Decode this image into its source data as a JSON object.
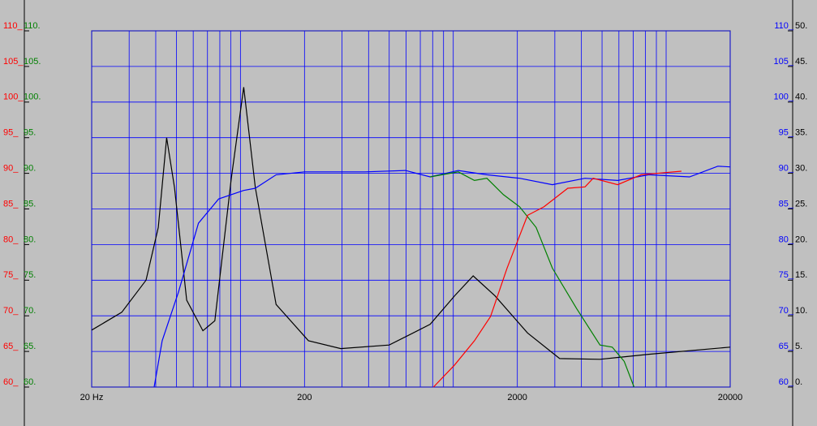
{
  "chart_data": {
    "type": "line",
    "log_x": true,
    "grid": true,
    "grid_color": "#0000ff",
    "xlim": [
      20,
      20000
    ],
    "xticks": [
      {
        "value": 20,
        "label": "20 Hz"
      },
      200,
      2000,
      20000
    ],
    "xminor": [
      30,
      40,
      50,
      60,
      70,
      80,
      90,
      100,
      300,
      400,
      500,
      600,
      700,
      800,
      900,
      1000,
      3000,
      4000,
      5000,
      6000,
      7000,
      8000,
      9000,
      10000
    ],
    "ylim": [
      60,
      110
    ],
    "yticks": [
      {
        "value": 60,
        "label": "60_"
      },
      {
        "value": 65,
        "label": "65_"
      },
      {
        "value": 70,
        "label": "70_"
      },
      {
        "value": 75,
        "label": "75_"
      },
      {
        "value": 80,
        "label": "80_"
      },
      {
        "value": 85,
        "label": "85_"
      },
      {
        "value": 90,
        "label": "90_"
      },
      {
        "value": 95,
        "label": "95_"
      },
      {
        "value": 100,
        "label": "100_"
      },
      {
        "value": 105,
        "label": "105_"
      },
      {
        "value": 110,
        "label": "110_"
      }
    ],
    "yticks_color": "#ff0000",
    "yticks_b": [
      {
        "value": 60,
        "label": "60."
      },
      {
        "value": 65,
        "label": "65."
      },
      {
        "value": 70,
        "label": "70."
      },
      {
        "value": 75,
        "label": "75."
      },
      {
        "value": 80,
        "label": "80."
      },
      {
        "value": 85,
        "label": "85."
      },
      {
        "value": 90,
        "label": "90."
      },
      {
        "value": 95,
        "label": "95."
      },
      {
        "value": 100,
        "label": "100."
      },
      {
        "value": 105,
        "label": "105."
      },
      {
        "value": 110,
        "label": "110."
      }
    ],
    "yticks_b_color": "#008000",
    "y2lim": [
      60,
      110
    ],
    "y2ticks": [
      {
        "value": 60,
        "label": "60_"
      },
      {
        "value": 65,
        "label": "65_"
      },
      {
        "value": 70,
        "label": "70_"
      },
      {
        "value": 75,
        "label": "75_"
      },
      {
        "value": 80,
        "label": "80_"
      },
      {
        "value": 85,
        "label": "85_"
      },
      {
        "value": 90,
        "label": "90_"
      },
      {
        "value": 95,
        "label": "95_"
      },
      {
        "value": 100,
        "label": "100_"
      },
      {
        "value": 105,
        "label": "105_"
      },
      {
        "value": 110,
        "label": "110_"
      }
    ],
    "y2ticks_color": "#0000ff",
    "y3lim": [
      0,
      50
    ],
    "y3ticks": [
      {
        "value": 0,
        "label": "0."
      },
      {
        "value": 5,
        "label": "5."
      },
      {
        "value": 10,
        "label": "10."
      },
      {
        "value": 15,
        "label": "15."
      },
      {
        "value": 20,
        "label": "20."
      },
      {
        "value": 25,
        "label": "25."
      },
      {
        "value": 30,
        "label": "30."
      },
      {
        "value": 35,
        "label": "35."
      },
      {
        "value": 40,
        "label": "40."
      },
      {
        "value": 45,
        "label": "45."
      },
      {
        "value": 50,
        "label": "50."
      }
    ],
    "y3ticks_color": "#000000",
    "series": [
      {
        "color": "#000000",
        "axis": "y3",
        "x": [
          20,
          27.7,
          36,
          41.1,
          45,
          49,
          55.9,
          66.6,
          75.8,
          90.6,
          103.6,
          117.5,
          147,
          208.8,
          296,
          500,
          779,
          1014,
          1240,
          1570,
          2233,
          3160,
          4890,
          8290,
          20000
        ],
        "values": [
          8,
          10.5,
          15,
          22.4,
          35,
          28,
          12.2,
          7.9,
          9.3,
          29.3,
          42.1,
          28,
          11.6,
          6.5,
          5.4,
          5.9,
          8.8,
          12.8,
          15.6,
          12.8,
          7.6,
          4,
          3.9,
          4.6,
          5.6
        ]
      },
      {
        "color": "#0000ff",
        "axis": "y",
        "x": [
          39.3,
          42.9,
          51.1,
          63.5,
          79,
          103.6,
          117.5,
          147,
          200,
          384,
          597,
          779,
          1055,
          1438,
          2051,
          2920,
          4160,
          5921,
          8290,
          12880,
          17500,
          20000
        ],
        "values": [
          60,
          66.5,
          73.3,
          83,
          86.4,
          87.6,
          87.9,
          89.8,
          90.2,
          90.2,
          90.4,
          89.5,
          90.4,
          89.8,
          89.3,
          88.4,
          89.3,
          89,
          89.8,
          89.5,
          91,
          90.9
        ]
      },
      {
        "color": "#008000",
        "axis": "y",
        "x": [
          779,
          1055,
          1258,
          1438,
          1720,
          2051,
          2450,
          2920,
          3800,
          4890,
          5580,
          6358,
          7070
        ],
        "values": [
          89.5,
          90.2,
          89,
          89.3,
          87,
          85.3,
          82.4,
          76.7,
          71,
          65.9,
          65.6,
          63.6,
          60
        ]
      },
      {
        "color": "#ff0000",
        "axis": "y",
        "x": [
          807,
          1014,
          1258,
          1496,
          1790,
          2233,
          2665,
          3450,
          4160,
          4540,
          5921,
          7630,
          9945,
          11800
        ],
        "values": [
          60,
          63.1,
          66.5,
          69.9,
          76.7,
          84.1,
          85.3,
          87.9,
          88.1,
          89.3,
          88.4,
          89.8,
          90.1,
          90.3
        ]
      }
    ]
  }
}
